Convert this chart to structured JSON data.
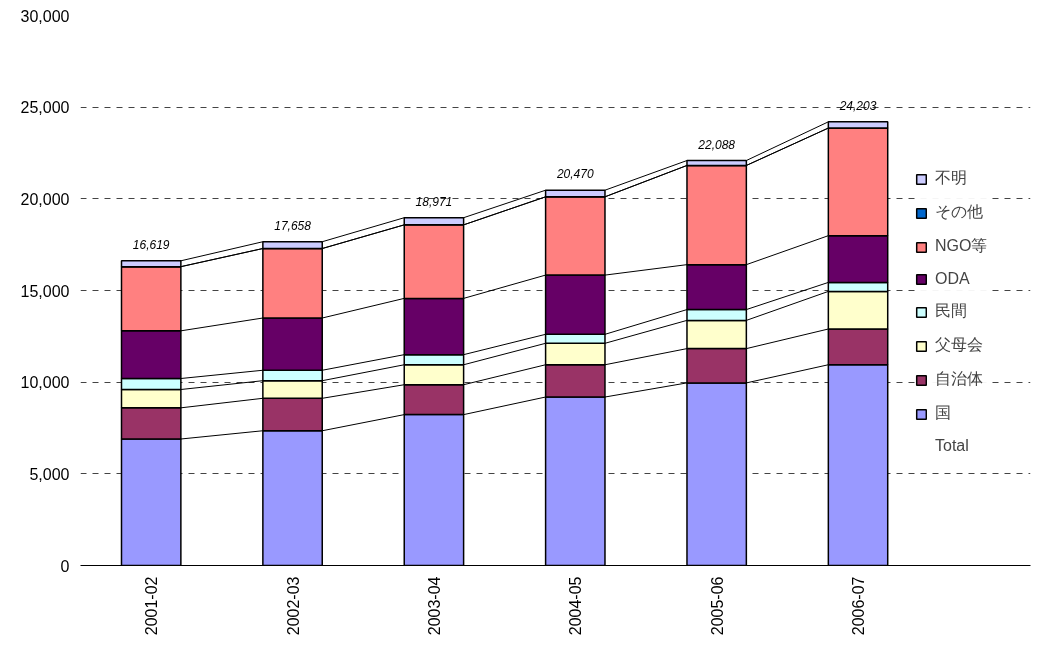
{
  "chart_data": {
    "type": "bar",
    "stacked": true,
    "categories": [
      "2001-02",
      "2002-03",
      "2003-04",
      "2004-05",
      "2005-06",
      "2006-07"
    ],
    "series": [
      {
        "name": "国",
        "color": "#9999ff",
        "values": [
          6900,
          7350,
          8230,
          9190,
          9960,
          10950
        ]
      },
      {
        "name": "自治体",
        "color": "#993366",
        "values": [
          1700,
          1770,
          1630,
          1760,
          1870,
          1950
        ]
      },
      {
        "name": "父母会",
        "color": "#ffffcc",
        "values": [
          1000,
          960,
          1090,
          1170,
          1540,
          2050
        ]
      },
      {
        "name": "民間",
        "color": "#ccffff",
        "values": [
          600,
          570,
          550,
          490,
          590,
          490
        ]
      },
      {
        "name": "ODA",
        "color": "#660066",
        "values": [
          2600,
          2850,
          3070,
          3230,
          2450,
          2550
        ]
      },
      {
        "name": "NGO等",
        "color": "#ff8080",
        "values": [
          3500,
          3790,
          4010,
          4270,
          5410,
          5870
        ]
      },
      {
        "name": "その他",
        "color": "#0066cc",
        "values": [
          null,
          null,
          null,
          null,
          null,
          null
        ]
      },
      {
        "name": "不明",
        "color": "#ccccff",
        "values": [
          320,
          370,
          390,
          360,
          270,
          340
        ]
      }
    ],
    "totals": [
      "16,619",
      "17,658",
      "18,971",
      "20,470",
      "22,088",
      "24,203"
    ],
    "annotations": [
      "Total"
    ],
    "ylim": [
      0,
      30000
    ],
    "yticks": [
      {
        "value": 0,
        "label": "0"
      },
      {
        "value": 5000,
        "label": "5,000"
      },
      {
        "value": 10000,
        "label": "10,000"
      },
      {
        "value": 15000,
        "label": "15,000"
      },
      {
        "value": 20000,
        "label": "20,000"
      },
      {
        "value": 25000,
        "label": "25,000"
      },
      {
        "value": 30000,
        "label": "30,000"
      }
    ],
    "grid": "y",
    "legend": "right"
  }
}
